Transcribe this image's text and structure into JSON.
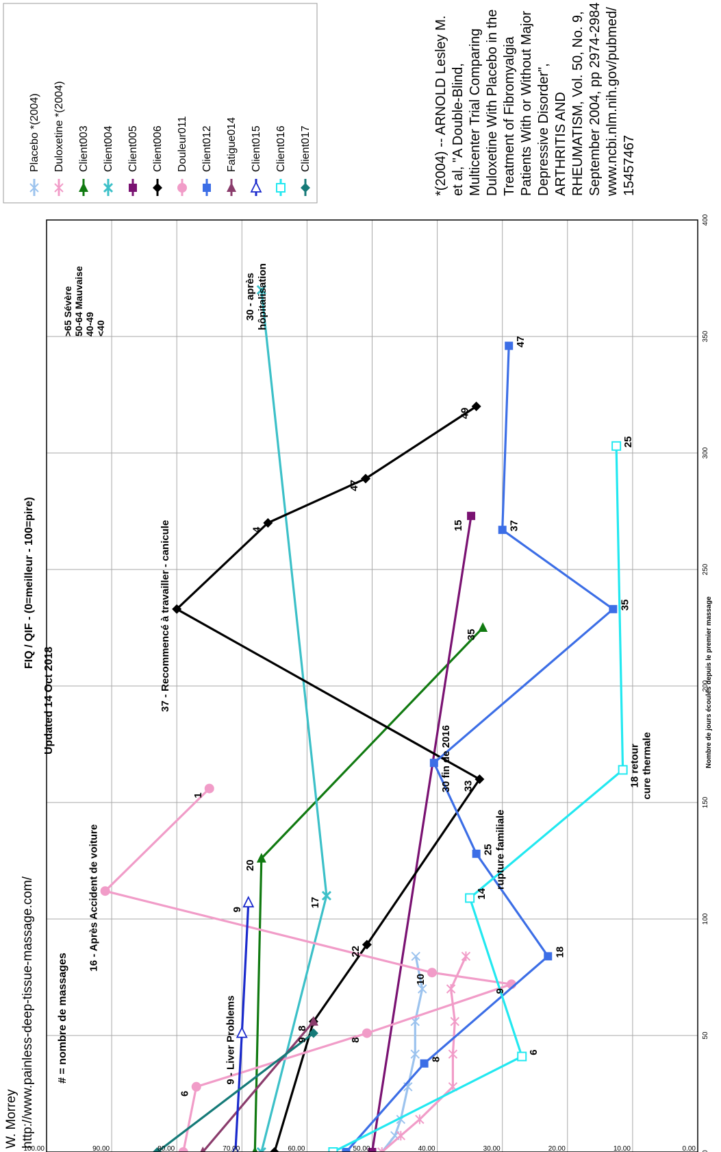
{
  "header": {
    "author": "W. Morrey",
    "url": "http://www.painless-deep-tissue-massage.com/",
    "updated": "Updated 14 Oct 2018",
    "title": "FIQ / QIF - (0=meilleur - 100=pire)",
    "massages_note": "# = nombre de massages"
  },
  "citation": [
    "*(2004)  --  ARNOLD Lesley M.",
    "et al, \"A Double-Blind,",
    "Multicenter Trial Comparing",
    "Duloxetine With Placebo in the",
    "Treatment of Fibromyalgia",
    "Patients With or Without Major",
    "Depressive Disorder\",",
    "ARTHRITIS AND",
    "RHEUMATISM, Vol. 50, No. 9,",
    "September 2004, pp 2974-2984",
    "www.ncbi.nlm.nih.gov/pubmed/",
    "15457467"
  ],
  "severity_legend": [
    ">65   Sévère",
    "50-64 Mauvaise",
    "40-49",
    "<40"
  ],
  "chart_data": {
    "type": "line",
    "title": "FIQ / QIF - (0=meilleur - 100=pire)",
    "xlabel": "Nombre de jours écoulés depuis le premier massage",
    "ylabel": "",
    "xlim": [
      0,
      400
    ],
    "ylim": [
      0,
      100
    ],
    "x_ticks": [
      "0",
      "50",
      "100",
      "150",
      "200",
      "250",
      "300",
      "350",
      "400"
    ],
    "y_ticks": [
      "0.00",
      "10.00",
      "20.00",
      "30.00",
      "40.00",
      "50.00",
      "60.00",
      "70.00",
      "80.00",
      "90.00",
      "100.00"
    ],
    "grid": true,
    "legend_position": "top-right",
    "series": [
      {
        "name": "Placebo *(2004)",
        "color": "#9cc3ee",
        "marker": "x",
        "points": [
          [
            0,
            48.5
          ],
          [
            7,
            46.5
          ],
          [
            14,
            45.6
          ],
          [
            28,
            44.5
          ],
          [
            42,
            43.4
          ],
          [
            56,
            43.4
          ],
          [
            70,
            42.3
          ],
          [
            84,
            43.3
          ]
        ]
      },
      {
        "name": "Duloxetine *(2004)",
        "color": "#f19cc8",
        "marker": "star",
        "points": [
          [
            0,
            48.5
          ],
          [
            7,
            45.6
          ],
          [
            14,
            42.7
          ],
          [
            28,
            37.6
          ],
          [
            42,
            37.6
          ],
          [
            56,
            37.3
          ],
          [
            70,
            37.9
          ],
          [
            84,
            35.6
          ]
        ]
      },
      {
        "name": "Client003",
        "color": "#117a11",
        "marker": "tri",
        "points": [
          [
            0,
            68
          ],
          [
            126,
            67
          ],
          [
            225,
            33
          ]
        ]
      },
      {
        "name": "Client004",
        "color": "#3cc0c8",
        "marker": "cross",
        "points": [
          [
            0,
            67
          ],
          [
            110,
            57
          ],
          [
            370,
            67
          ]
        ]
      },
      {
        "name": "Client005",
        "color": "#7a1272",
        "marker": "square",
        "points": [
          [
            0,
            50
          ],
          [
            273,
            34.8
          ]
        ]
      },
      {
        "name": "Client006",
        "color": "#000000",
        "marker": "diamond",
        "points": [
          [
            0,
            65
          ],
          [
            56,
            59
          ],
          [
            89,
            50.8
          ],
          [
            160,
            33.5
          ],
          [
            233,
            80
          ],
          [
            270,
            66
          ],
          [
            289,
            51
          ],
          [
            320,
            34
          ]
        ]
      },
      {
        "name": "Douleur011",
        "color": "#f19cc8",
        "marker": "circle",
        "points": [
          [
            0,
            79
          ],
          [
            28,
            77
          ],
          [
            51,
            50.8
          ],
          [
            72,
            28.6
          ],
          [
            77,
            40.8
          ],
          [
            112,
            91
          ],
          [
            156,
            75
          ]
        ]
      },
      {
        "name": "Client012",
        "color": "#3c6ee6",
        "marker": "square",
        "points": [
          [
            0,
            54
          ],
          [
            38,
            42
          ],
          [
            84,
            23
          ],
          [
            128,
            34
          ],
          [
            167,
            40.5
          ],
          [
            233,
            13
          ],
          [
            267,
            30
          ],
          [
            346,
            29
          ]
        ]
      },
      {
        "name": "Fatigue014",
        "color": "#8a3c6c",
        "marker": "tri",
        "points": [
          [
            0,
            76
          ],
          [
            56,
            59
          ]
        ]
      },
      {
        "name": "Client015",
        "color": "#1a2acc",
        "marker": "opentri",
        "points": [
          [
            0,
            71
          ],
          [
            51,
            70
          ],
          [
            107,
            69
          ]
        ]
      },
      {
        "name": "Client016",
        "color": "#22e8f0",
        "marker": "opensquare",
        "points": [
          [
            0,
            56
          ],
          [
            41,
            27
          ],
          [
            109,
            35
          ],
          [
            164,
            11.5
          ],
          [
            303,
            12.5
          ]
        ]
      },
      {
        "name": "Client017",
        "color": "#157a78",
        "marker": "diamond",
        "points": [
          [
            0,
            83
          ],
          [
            51,
            59
          ]
        ]
      }
    ],
    "annotations": [
      {
        "text": "6",
        "series": "Douleur011",
        "x": 28,
        "y": 77
      },
      {
        "text": "8",
        "series": "Douleur011",
        "x": 51,
        "y": 50.8
      },
      {
        "text": "9",
        "series": "Douleur011",
        "x": 72,
        "y": 28.6
      },
      {
        "text": "10",
        "series": "Douleur011",
        "x": 77,
        "y": 40.8
      },
      {
        "text": "16 - Après Accident de voiture",
        "series": "Douleur011",
        "x": 112,
        "y": 91
      },
      {
        "text": "1",
        "series": "Douleur011",
        "x": 156,
        "y": 75
      },
      {
        "text": "9 - Liver Problems",
        "series": "Client015",
        "x": 51,
        "y": 70
      },
      {
        "text": "9",
        "series": "Client015",
        "x": 107,
        "y": 69
      },
      {
        "text": "8",
        "series": "Client006",
        "x": 56,
        "y": 59
      },
      {
        "text": "22",
        "series": "Client006",
        "x": 89,
        "y": 50.8
      },
      {
        "text": "33",
        "series": "Client006",
        "x": 160,
        "y": 33.5
      },
      {
        "text": "37 - Recommencé à travailler - canicule",
        "series": "Client006",
        "x": 233,
        "y": 80
      },
      {
        "text": "4",
        "series": "Client006",
        "x": 270,
        "y": 66
      },
      {
        "text": "47",
        "series": "Client006",
        "x": 289,
        "y": 51
      },
      {
        "text": "49",
        "series": "Client006",
        "x": 320,
        "y": 34
      },
      {
        "text": "9",
        "series": "Client017",
        "x": 51,
        "y": 59
      },
      {
        "text": "20",
        "series": "Client003",
        "x": 126,
        "y": 67
      },
      {
        "text": "35",
        "series": "Client003",
        "x": 225,
        "y": 33
      },
      {
        "text": "17",
        "series": "Client004",
        "x": 110,
        "y": 57
      },
      {
        "text": "30 - après hôpitalisation",
        "series": "Client004",
        "x": 370,
        "y": 67
      },
      {
        "text": "15",
        "series": "Client005",
        "x": 273,
        "y": 34.8
      },
      {
        "text": "8",
        "series": "Client012",
        "x": 38,
        "y": 42
      },
      {
        "text": "18",
        "series": "Client012",
        "x": 84,
        "y": 23
      },
      {
        "text": "25 rupture familiale",
        "series": "Client012",
        "x": 128,
        "y": 34
      },
      {
        "text": "30 fin de 2016",
        "series": "Client012",
        "x": 167,
        "y": 40.5
      },
      {
        "text": "35",
        "series": "Client012",
        "x": 233,
        "y": 13
      },
      {
        "text": "37",
        "series": "Client012",
        "x": 267,
        "y": 30
      },
      {
        "text": "47",
        "series": "Client012",
        "x": 346,
        "y": 29
      },
      {
        "text": "6",
        "series": "Client016",
        "x": 41,
        "y": 27
      },
      {
        "text": "14",
        "series": "Client016",
        "x": 109,
        "y": 35
      },
      {
        "text": "18 retour cure thermale",
        "series": "Client016",
        "x": 164,
        "y": 11.5
      },
      {
        "text": "25",
        "series": "Client016",
        "x": 303,
        "y": 12.5
      }
    ]
  }
}
